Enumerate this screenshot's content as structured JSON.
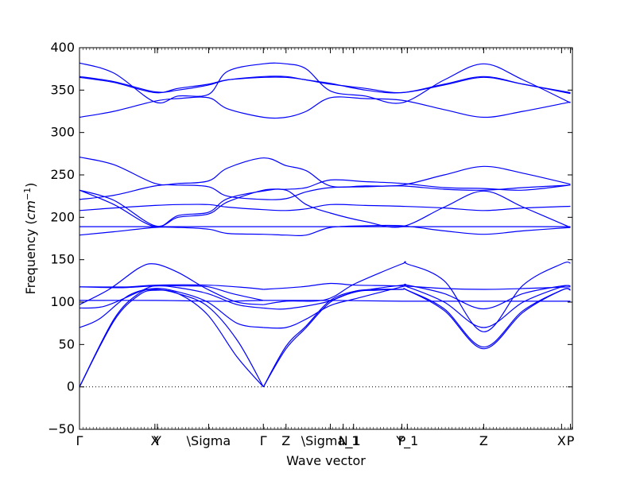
{
  "chart_data": {
    "type": "line",
    "title": "",
    "xlabel": "Wave vector",
    "ylabel": "Frequency (cm⁻¹)",
    "ylabel_prefix": "Frequency (",
    "ylabel_unit": "cm",
    "ylabel_exp": "−1",
    "ylabel_suffix": ")",
    "ylim": [
      -50,
      400
    ],
    "yticks": [
      -50,
      0,
      50,
      100,
      150,
      200,
      250,
      300,
      350,
      400
    ],
    "xlim": [
      0,
      1
    ],
    "grid": false,
    "legend": "none",
    "zero_line": {
      "y": 0,
      "style": "dotted"
    },
    "xticks": [
      {
        "label": "Γ",
        "x": 0.0
      },
      {
        "label": "X",
        "x": 0.153
      },
      {
        "label": "Y",
        "x": 0.158
      },
      {
        "label": "\\Sigma",
        "x": 0.262
      },
      {
        "label": "Γ",
        "x": 0.373
      },
      {
        "label": "Z",
        "x": 0.419
      },
      {
        "label": "\\Sigma_1",
        "x": 0.509
      },
      {
        "label": "N",
        "x": 0.535
      },
      {
        "label": "_1",
        "x": 0.556
      },
      {
        "label": "P",
        "x": 0.654
      },
      {
        "label": "Y_1",
        "x": 0.665
      },
      {
        "label": "Z",
        "x": 0.82
      },
      {
        "label": "X",
        "x": 0.978
      },
      {
        "label": "P",
        "x": 0.996
      }
    ],
    "series_color": "#0000ff",
    "series": [
      {
        "x": [
          0,
          0.07,
          0.12,
          0.153,
          0.2,
          0.26,
          0.32,
          0.373
        ],
        "values": [
          0,
          78,
          108,
          114,
          110,
          85,
          35,
          0
        ]
      },
      {
        "x": [
          0,
          0.07,
          0.12,
          0.153,
          0.2,
          0.26,
          0.32,
          0.373
        ],
        "values": [
          0,
          80,
          110,
          115,
          110,
          95,
          55,
          0
        ]
      },
      {
        "x": [
          0,
          0.04,
          0.1,
          0.153,
          0.2,
          0.26,
          0.32,
          0.373
        ],
        "values": [
          70,
          80,
          108,
          116,
          112,
          100,
          75,
          70
        ]
      },
      {
        "x": [
          0,
          0.05,
          0.12,
          0.153,
          0.2,
          0.26,
          0.32,
          0.373
        ],
        "values": [
          93,
          95,
          112,
          119,
          117,
          110,
          97,
          93
        ]
      },
      {
        "x": [
          0,
          0.06,
          0.12,
          0.153,
          0.2,
          0.26,
          0.32,
          0.373
        ],
        "values": [
          97,
          115,
          140,
          145,
          135,
          115,
          100,
          97
        ]
      },
      {
        "x": [
          0,
          0.153,
          0.262,
          0.3,
          0.373
        ],
        "values": [
          102,
          102,
          101,
          101,
          102
        ]
      },
      {
        "x": [
          0,
          0.08,
          0.153,
          0.22,
          0.262,
          0.31,
          0.373
        ],
        "values": [
          118,
          117,
          119,
          119,
          118,
          110,
          102
        ]
      },
      {
        "x": [
          0,
          0.1,
          0.153,
          0.26,
          0.34,
          0.373
        ],
        "values": [
          118,
          118,
          120,
          120,
          117,
          115
        ]
      },
      {
        "x": [
          0.373,
          0.419,
          0.46,
          0.509,
          0.56,
          0.6,
          0.654,
          0.665,
          0.74,
          0.82,
          0.9,
          0.978,
          0.996
        ],
        "values": [
          0,
          45,
          70,
          100,
          112,
          114,
          115,
          114,
          90,
          45,
          88,
          114,
          114
        ]
      },
      {
        "x": [
          0.373,
          0.419,
          0.46,
          0.509,
          0.56,
          0.6,
          0.654,
          0.665,
          0.74,
          0.82,
          0.9,
          0.978,
          0.996
        ],
        "values": [
          0,
          48,
          72,
          102,
          113,
          115,
          115,
          114,
          92,
          47,
          90,
          114,
          115
        ]
      },
      {
        "x": [
          0.373,
          0.419,
          0.46,
          0.509,
          0.56,
          0.654,
          0.665,
          0.74,
          0.82,
          0.9,
          0.978,
          0.996
        ],
        "values": [
          70,
          70,
          80,
          96,
          104,
          118,
          118,
          100,
          70,
          100,
          118,
          119
        ]
      },
      {
        "x": [
          0.373,
          0.419,
          0.5,
          0.56,
          0.654,
          0.665,
          0.74,
          0.82,
          0.9,
          0.978,
          0.996
        ],
        "values": [
          93,
          92,
          100,
          112,
          120,
          120,
          110,
          92,
          110,
          119,
          119
        ]
      },
      {
        "x": [
          0.373,
          0.419,
          0.5,
          0.56,
          0.654,
          0.665,
          0.74,
          0.82,
          0.9,
          0.978,
          0.996
        ],
        "values": [
          97,
          101,
          103,
          122,
          145,
          145,
          125,
          65,
          120,
          145,
          146
        ]
      },
      {
        "x": [
          0.373,
          0.509,
          0.654,
          0.82,
          0.996
        ],
        "values": [
          102,
          102,
          101,
          101,
          101
        ]
      },
      {
        "x": [
          0.373,
          0.45,
          0.509,
          0.56,
          0.654,
          0.74,
          0.82,
          0.9,
          0.996
        ],
        "values": [
          115,
          118,
          122,
          120,
          119,
          116,
          115,
          116,
          118
        ]
      },
      {
        "x": [
          0,
          0.153,
          0.262,
          0.373,
          0.509,
          0.654,
          0.82,
          0.996
        ],
        "values": [
          189,
          189,
          189,
          189,
          189,
          189,
          189,
          189
        ]
      },
      {
        "x": [
          0,
          0.07,
          0.153,
          0.2,
          0.262,
          0.3,
          0.373,
          0.419,
          0.46,
          0.509,
          0.58,
          0.654,
          0.74,
          0.82,
          0.9,
          0.996
        ],
        "values": [
          179,
          183,
          188,
          188,
          186,
          181,
          180,
          179,
          179,
          188,
          190,
          190,
          184,
          180,
          184,
          188
        ]
      },
      {
        "x": [
          0,
          0.07,
          0.153,
          0.2,
          0.262,
          0.3,
          0.373,
          0.419,
          0.46,
          0.509,
          0.58,
          0.654,
          0.74,
          0.82,
          0.9,
          0.996
        ],
        "values": [
          208,
          211,
          214,
          215,
          215,
          212,
          209,
          208,
          210,
          215,
          214,
          213,
          211,
          208,
          211,
          213
        ]
      },
      {
        "x": [
          0,
          0.07,
          0.153,
          0.2,
          0.262,
          0.3,
          0.373,
          0.419,
          0.46,
          0.509,
          0.58,
          0.654,
          0.74,
          0.82,
          0.9,
          0.996
        ],
        "values": [
          232,
          215,
          189,
          202,
          206,
          222,
          231,
          232,
          215,
          205,
          195,
          189,
          212,
          231,
          212,
          188
        ]
      },
      {
        "x": [
          0,
          0.07,
          0.153,
          0.2,
          0.262,
          0.3,
          0.373,
          0.419,
          0.46,
          0.509,
          0.58,
          0.654,
          0.74,
          0.82,
          0.9,
          0.996
        ],
        "values": [
          232,
          220,
          190,
          200,
          204,
          218,
          232,
          233,
          235,
          244,
          242,
          240,
          235,
          234,
          232,
          238
        ]
      },
      {
        "x": [
          0,
          0.07,
          0.153,
          0.2,
          0.262,
          0.3,
          0.373,
          0.419,
          0.46,
          0.509,
          0.58,
          0.654,
          0.74,
          0.82,
          0.9,
          0.996
        ],
        "values": [
          221,
          226,
          237,
          238,
          236,
          225,
          221,
          222,
          230,
          235,
          236,
          237,
          233,
          232,
          235,
          238
        ]
      },
      {
        "x": [
          0,
          0.07,
          0.153,
          0.2,
          0.262,
          0.3,
          0.373,
          0.419,
          0.46,
          0.509,
          0.58,
          0.654,
          0.74,
          0.82,
          0.9,
          0.996
        ],
        "values": [
          271,
          262,
          240,
          240,
          243,
          258,
          270,
          261,
          255,
          237,
          237,
          238,
          250,
          260,
          252,
          239
        ]
      },
      {
        "x": [
          0,
          0.07,
          0.153,
          0.2,
          0.262,
          0.3,
          0.373,
          0.419,
          0.46,
          0.509,
          0.58,
          0.654,
          0.74,
          0.82,
          0.9,
          0.996
        ],
        "values": [
          318,
          325,
          337,
          340,
          341,
          328,
          318,
          318,
          325,
          341,
          340,
          338,
          327,
          318,
          325,
          336
        ]
      },
      {
        "x": [
          0,
          0.07,
          0.153,
          0.2,
          0.262,
          0.3,
          0.373,
          0.419,
          0.46,
          0.509,
          0.58,
          0.654,
          0.74,
          0.82,
          0.9,
          0.996
        ],
        "values": [
          365,
          359,
          347,
          352,
          357,
          362,
          365,
          365,
          362,
          357,
          352,
          347,
          356,
          365,
          357,
          347
        ]
      },
      {
        "x": [
          0,
          0.07,
          0.153,
          0.2,
          0.262,
          0.3,
          0.373,
          0.419,
          0.46,
          0.509,
          0.58,
          0.654,
          0.74,
          0.82,
          0.9,
          0.996
        ],
        "values": [
          366,
          360,
          348,
          350,
          356,
          362,
          366,
          366,
          362,
          358,
          350,
          347,
          357,
          366,
          357,
          346
        ]
      },
      {
        "x": [
          0,
          0.07,
          0.153,
          0.2,
          0.262,
          0.3,
          0.373,
          0.419,
          0.46,
          0.509,
          0.58,
          0.654,
          0.74,
          0.82,
          0.9,
          0.996
        ],
        "values": [
          382,
          370,
          336,
          343,
          345,
          372,
          381,
          381,
          375,
          349,
          343,
          335,
          362,
          381,
          362,
          335
        ]
      }
    ]
  }
}
